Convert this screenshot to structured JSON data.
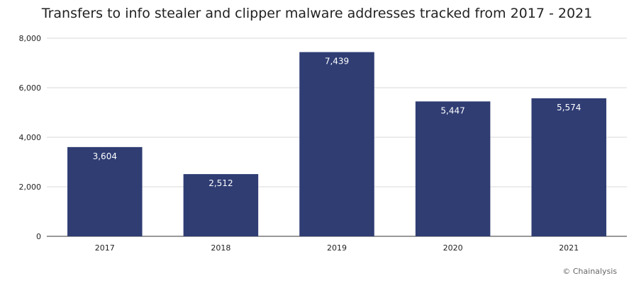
{
  "colors": {
    "bar": "#2f3d73",
    "grid": "#d9d9d9",
    "axis": "#333333",
    "data_label": "#ffffff",
    "text": "#222222"
  },
  "credit": "© Chainalysis",
  "chart_data": {
    "type": "bar",
    "title": "Transfers to info stealer and clipper malware addresses tracked from 2017 - 2021",
    "xlabel": "",
    "ylabel": "",
    "categories": [
      "2017",
      "2018",
      "2019",
      "2020",
      "2021"
    ],
    "values": [
      3604,
      2512,
      7439,
      5447,
      5574
    ],
    "value_labels": [
      "3,604",
      "2,512",
      "7,439",
      "5,447",
      "5,574"
    ],
    "ylim": [
      0,
      8000
    ],
    "yticks": [
      0,
      2000,
      4000,
      6000,
      8000
    ],
    "ytick_labels": [
      "0",
      "2,000",
      "4,000",
      "6,000",
      "8,000"
    ],
    "grid": true,
    "legend": "none"
  }
}
